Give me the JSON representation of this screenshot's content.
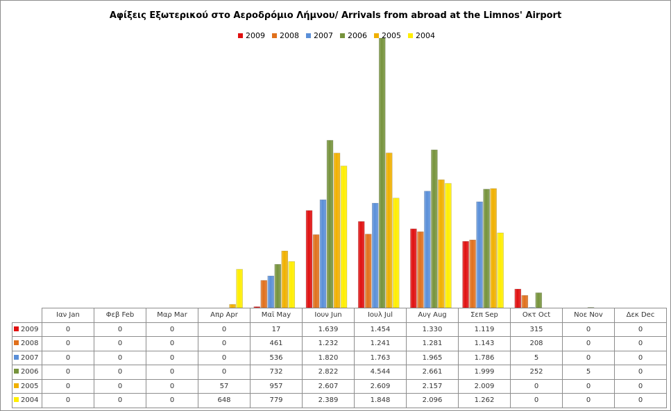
{
  "chart_data": {
    "type": "bar",
    "title": "Αφίξεις Εξωτερικού στο Αεροδρόμιο Λήμνου/ Arrivals from abroad at the Limnos' Airport",
    "xlabel": "",
    "ylabel": "",
    "ylim": [
      0,
      4544
    ],
    "grid": false,
    "legend_position": "top",
    "categories": [
      "Ιαν  Jan",
      "Φεβ  Feb",
      "Μαρ  Mar",
      "Απρ  Apr",
      "Μαϊ  May",
      "Ιουν  Jun",
      "Ιουλ  Jul",
      "Αυγ  Aug",
      "Σεπ  Sep",
      "Οκτ  Oct",
      "Νοε  Nov",
      "Δεκ  Dec"
    ],
    "series": [
      {
        "name": "2009",
        "color": "#e01010",
        "values": [
          0,
          0,
          0,
          0,
          17,
          1639,
          1454,
          1330,
          1119,
          315,
          0,
          0
        ]
      },
      {
        "name": "2008",
        "color": "#e0701c",
        "values": [
          0,
          0,
          0,
          0,
          461,
          1232,
          1241,
          1281,
          1143,
          208,
          0,
          0
        ]
      },
      {
        "name": "2007",
        "color": "#5a8fd8",
        "values": [
          0,
          0,
          0,
          0,
          536,
          1820,
          1763,
          1965,
          1786,
          5,
          0,
          0
        ]
      },
      {
        "name": "2006",
        "color": "#76933c",
        "values": [
          0,
          0,
          0,
          0,
          732,
          2822,
          4544,
          2661,
          1999,
          252,
          5,
          0
        ]
      },
      {
        "name": "2005",
        "color": "#f0b000",
        "values": [
          0,
          0,
          0,
          57,
          957,
          2607,
          2609,
          2157,
          2009,
          0,
          0,
          0
        ]
      },
      {
        "name": "2004",
        "color": "#ffee00",
        "values": [
          0,
          0,
          0,
          648,
          779,
          2389,
          1848,
          2096,
          1262,
          0,
          0,
          0
        ]
      }
    ]
  }
}
